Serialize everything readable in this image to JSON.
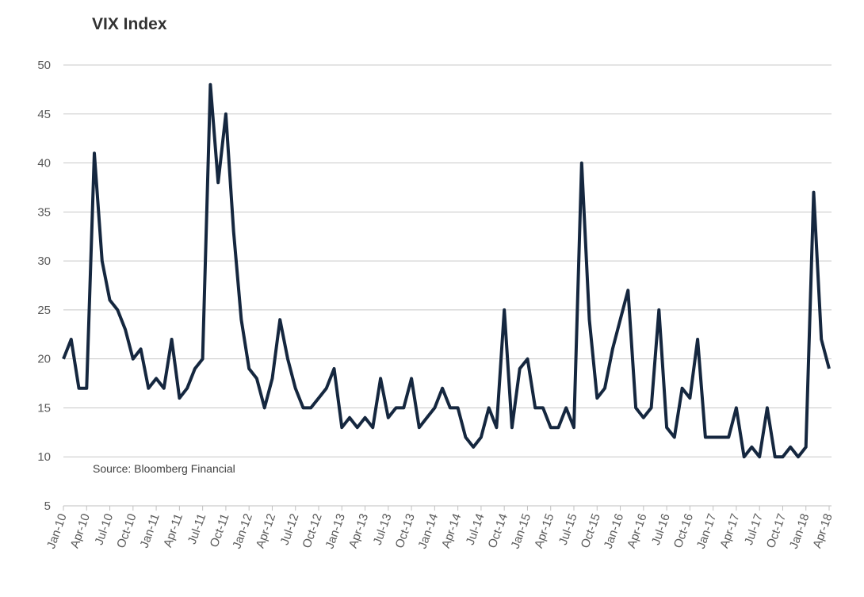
{
  "chart_data": {
    "type": "line",
    "title": "VIX Index",
    "annotation": "Source: Bloomberg Financial",
    "categories": [
      "Jan-10",
      null,
      null,
      "Apr-10",
      null,
      null,
      "Jul-10",
      null,
      null,
      "Oct-10",
      null,
      null,
      "Jan-11",
      null,
      null,
      "Apr-11",
      null,
      null,
      "Jul-11",
      null,
      null,
      "Oct-11",
      null,
      null,
      "Jan-12",
      null,
      null,
      "Apr-12",
      null,
      null,
      "Jul-12",
      null,
      null,
      "Oct-12",
      null,
      null,
      "Jan-13",
      null,
      null,
      "Apr-13",
      null,
      null,
      "Jul-13",
      null,
      null,
      "Oct-13",
      null,
      null,
      "Jan-14",
      null,
      null,
      "Apr-14",
      null,
      null,
      "Jul-14",
      null,
      null,
      "Oct-14",
      null,
      null,
      "Jan-15",
      null,
      null,
      "Apr-15",
      null,
      null,
      "Jul-15",
      null,
      null,
      "Oct-15",
      null,
      null,
      "Jan-16",
      null,
      null,
      "Apr-16",
      null,
      null,
      "Jul-16",
      null,
      null,
      "Oct-16",
      null,
      null,
      "Jan-17",
      null,
      null,
      "Apr-17",
      null,
      null,
      "Jul-17",
      null,
      null,
      "Oct-17",
      null,
      null,
      "Jan-18",
      null,
      null,
      "Apr-18"
    ],
    "series": [
      {
        "name": "VIX",
        "color": "#15273f",
        "values": [
          20,
          22,
          17,
          17,
          41,
          30,
          26,
          25,
          23,
          20,
          21,
          17,
          18,
          17,
          22,
          16,
          17,
          19,
          20,
          48,
          38,
          45,
          33,
          24,
          19,
          18,
          15,
          18,
          24,
          20,
          17,
          15,
          15,
          16,
          17,
          19,
          13,
          14,
          13,
          14,
          13,
          18,
          14,
          15,
          15,
          18,
          13,
          14,
          15,
          17,
          15,
          15,
          12,
          11,
          12,
          15,
          13,
          25,
          13,
          19,
          20,
          15,
          15,
          13,
          13,
          15,
          13,
          40,
          24,
          16,
          17,
          21,
          24,
          27,
          15,
          14,
          15,
          25,
          13,
          12,
          17,
          16,
          22,
          12,
          12,
          12,
          12,
          15,
          10,
          11,
          10,
          15,
          10,
          10,
          11,
          10,
          11,
          37,
          22,
          19
        ]
      }
    ],
    "ylim": [
      5,
      50
    ],
    "yticks": [
      5,
      10,
      15,
      20,
      25,
      30,
      35,
      40,
      45,
      50
    ],
    "grid": true
  }
}
